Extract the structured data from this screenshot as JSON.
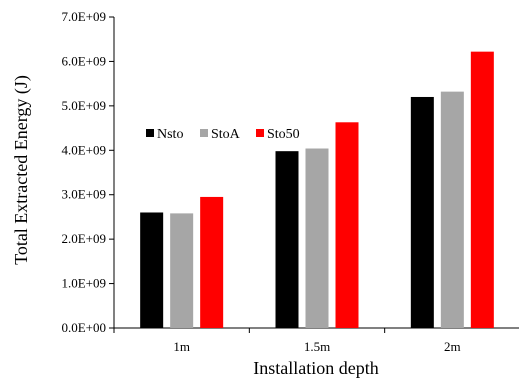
{
  "chart_data": {
    "type": "bar",
    "categories": [
      "1m",
      "1.5m",
      "2m"
    ],
    "series": [
      {
        "name": "Nsto",
        "color": "#000000",
        "values": [
          2600000000.0,
          3980000000.0,
          5200000000.0
        ]
      },
      {
        "name": "StoA",
        "color": "#a6a6a6",
        "values": [
          2580000000.0,
          4040000000.0,
          5320000000.0
        ]
      },
      {
        "name": "Sto50",
        "color": "#ff0000",
        "values": [
          2950000000.0,
          4630000000.0,
          6220000000.0
        ]
      }
    ],
    "xlabel": "Installation depth",
    "ylabel": "Total Extracted Energy (J)",
    "ylim": [
      0,
      7000000000.0
    ],
    "yticks": [
      0,
      1000000000.0,
      2000000000.0,
      3000000000.0,
      4000000000.0,
      5000000000.0,
      6000000000.0,
      7000000000.0
    ],
    "ytick_labels": [
      "0.0E+00",
      "1.0E+09",
      "2.0E+09",
      "3.0E+09",
      "4.0E+09",
      "5.0E+09",
      "6.0E+09",
      "7.0E+09"
    ],
    "grid": false,
    "legend_position": "center-left"
  }
}
